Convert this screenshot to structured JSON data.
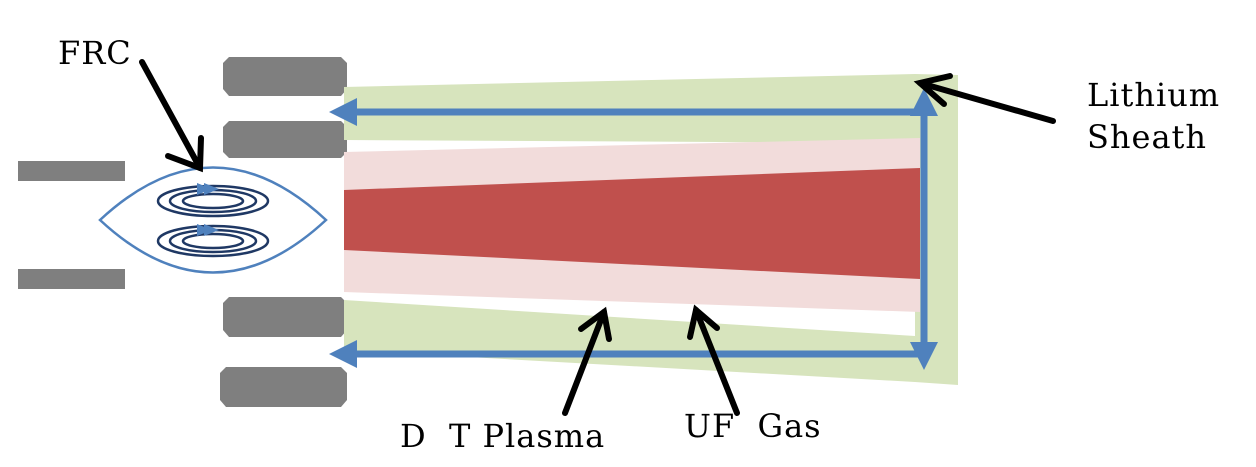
{
  "labels": {
    "frc": "FRC",
    "lithium": "Lithium",
    "sheath": "Sheath",
    "dt_plasma": "D  T Plasma",
    "uf_gas": "UF  Gas"
  },
  "colors": {
    "electrode": "#7f7f7f",
    "sheath_fill": "#d7e4bd",
    "gas_fill": "#f2dcdb",
    "plasma_fill": "#c0504d",
    "flow_arrow": "#4f81bd",
    "frc_outline": "#4f81bd",
    "frc_rings": "#1f3864",
    "pointer": "#000000"
  }
}
